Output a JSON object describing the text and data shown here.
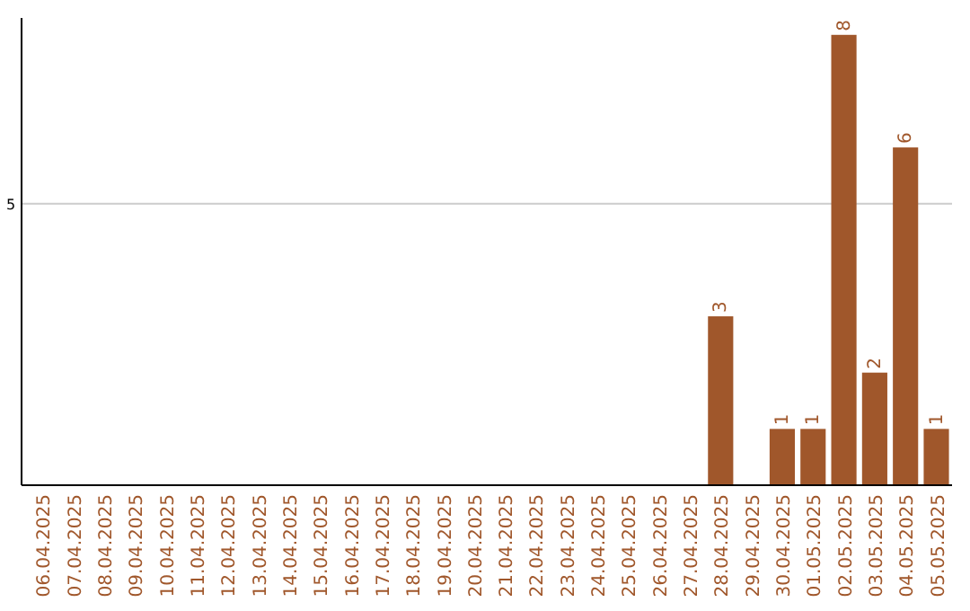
{
  "chart_data": {
    "type": "bar",
    "categories": [
      "06.04.2025",
      "07.04.2025",
      "08.04.2025",
      "09.04.2025",
      "10.04.2025",
      "11.04.2025",
      "12.04.2025",
      "13.04.2025",
      "14.04.2025",
      "15.04.2025",
      "16.04.2025",
      "17.04.2025",
      "18.04.2025",
      "19.04.2025",
      "20.04.2025",
      "21.04.2025",
      "22.04.2025",
      "23.04.2025",
      "24.04.2025",
      "25.04.2025",
      "26.04.2025",
      "27.04.2025",
      "28.04.2025",
      "29.04.2025",
      "30.04.2025",
      "01.05.2025",
      "02.05.2025",
      "03.05.2025",
      "04.05.2025",
      "05.05.2025"
    ],
    "series": [
      {
        "color": "#a0572b",
        "values": [
          null,
          null,
          null,
          null,
          null,
          null,
          null,
          null,
          null,
          null,
          null,
          null,
          null,
          null,
          null,
          null,
          null,
          null,
          null,
          null,
          null,
          null,
          3,
          null,
          1,
          1,
          8,
          2,
          6,
          1
        ]
      }
    ],
    "data_labels": true,
    "ylim": [
      0,
      8.3
    ],
    "ref_lines": [
      {
        "axis": "y",
        "value": 5,
        "label": "5",
        "color": "#cccccc"
      }
    ]
  }
}
